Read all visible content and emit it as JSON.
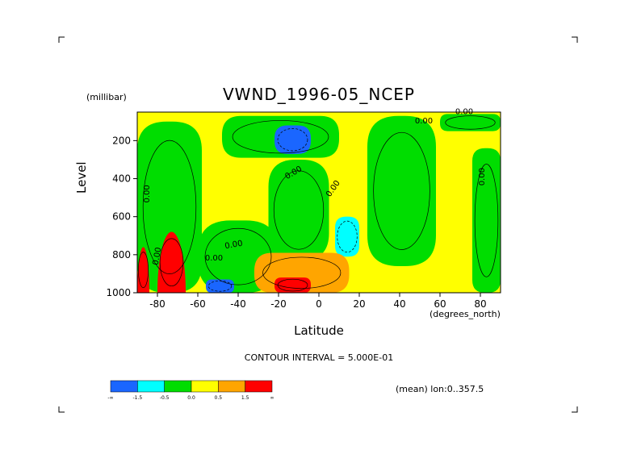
{
  "chart_data": {
    "type": "heatmap",
    "title": "VWND_1996-05_NCEP",
    "xlabel": "Latitude",
    "x_units": "(degrees_north)",
    "ylabel": "Level",
    "y_units": "(millibar)",
    "xlim": [
      -90,
      90
    ],
    "ylim": [
      1000,
      50
    ],
    "y_inverted": true,
    "x_ticks": [
      "-80",
      "-60",
      "-40",
      "-20",
      "0",
      "20",
      "40",
      "60",
      "80"
    ],
    "y_ticks": [
      "200",
      "400",
      "600",
      "800",
      "1000"
    ],
    "contour_interval_text": "CONTOUR INTERVAL = 5.000E-01",
    "averaging_note": "(mean) lon:0..357.5",
    "contour_labels": [
      "0.00",
      "0.00",
      "0.00",
      "0.00",
      "0.00",
      "0.00",
      "0.00",
      "0.00",
      "0.00"
    ],
    "colorbar": {
      "labels": [
        "-∞",
        "-1.5",
        "-0.5",
        "0.0",
        "0.5",
        "1.5",
        "∞"
      ],
      "colors": [
        "#1a66ff",
        "#00ffff",
        "#00dd00",
        "#ffff00",
        "#ffa500",
        "#ff0000"
      ]
    },
    "color_key": {
      "strong_negative": "#1a66ff",
      "negative": "#00ffff",
      "weak_negative": "#00dd00",
      "weak_positive": "#ffff00",
      "positive": "#ffa500",
      "strong_positive": "#ff0000"
    },
    "regions": [
      {
        "kind": "green",
        "lat": [
          -90,
          -58
        ],
        "lev": [
          100,
          1000
        ]
      },
      {
        "kind": "green",
        "lat": [
          -60,
          -20
        ],
        "lev": [
          620,
          1000
        ]
      },
      {
        "kind": "green",
        "lat": [
          -48,
          10
        ],
        "lev": [
          70,
          290
        ]
      },
      {
        "kind": "green",
        "lat": [
          -25,
          5
        ],
        "lev": [
          300,
          830
        ]
      },
      {
        "kind": "green",
        "lat": [
          24,
          58
        ],
        "lev": [
          70,
          860
        ]
      },
      {
        "kind": "green",
        "lat": [
          76,
          90
        ],
        "lev": [
          240,
          1000
        ]
      },
      {
        "kind": "green",
        "lat": [
          60,
          90
        ],
        "lev": [
          60,
          150
        ]
      },
      {
        "kind": "blue",
        "lat": [
          -22,
          -4
        ],
        "lev": [
          120,
          270
        ]
      },
      {
        "kind": "blue",
        "lat": [
          -56,
          -42
        ],
        "lev": [
          930,
          1000
        ]
      },
      {
        "kind": "cyan",
        "lat": [
          8,
          20
        ],
        "lev": [
          600,
          810
        ]
      },
      {
        "kind": "orange",
        "lat": [
          -32,
          15
        ],
        "lev": [
          790,
          1000
        ]
      },
      {
        "kind": "red",
        "lat": [
          -22,
          -4
        ],
        "lev": [
          920,
          1000
        ]
      },
      {
        "kind": "red",
        "lat": [
          -90,
          -84
        ],
        "lev": [
          760,
          1000
        ]
      },
      {
        "kind": "red",
        "lat": [
          -80,
          -66
        ],
        "lev": [
          680,
          1000
        ]
      }
    ]
  }
}
